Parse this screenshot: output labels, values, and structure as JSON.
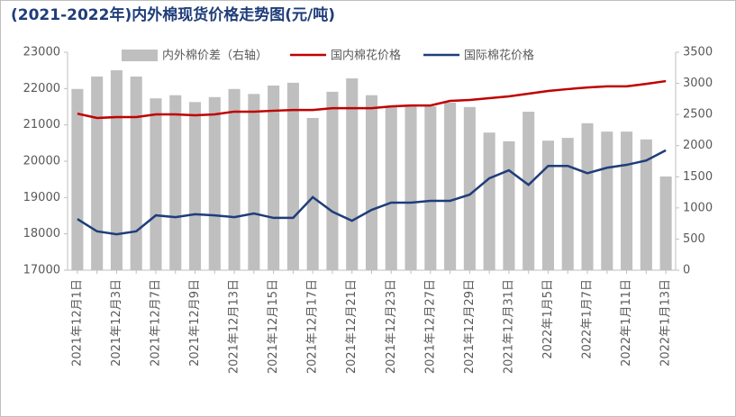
{
  "chart_data": {
    "type": "bar-line",
    "title": "(2021-2022年)内外棉现货价格走势图(元/吨)",
    "categories": [
      "2021年12月1日",
      null,
      "2021年12月3日",
      null,
      "2021年12月7日",
      null,
      "2021年12月9日",
      null,
      "2021年12月13日",
      null,
      "2021年12月15日",
      null,
      "2021年12月17日",
      null,
      "2021年12月21日",
      null,
      "2021年12月23日",
      null,
      "2021年12月27日",
      null,
      "2021年12月29日",
      null,
      "2021年12月31日",
      null,
      "2022年1月5日",
      null,
      "2022年1月7日",
      null,
      "2022年1月11日",
      null,
      "2022年1月13日"
    ],
    "series": [
      {
        "name": "内外棉价差（右轴）",
        "type": "bar",
        "axis": "y2",
        "color": "#bfbfbf",
        "values": [
          2910,
          3110,
          3210,
          3110,
          2760,
          2810,
          2700,
          2780,
          2910,
          2830,
          2965,
          3010,
          2445,
          2865,
          3080,
          2810,
          2630,
          2650,
          2630,
          2690,
          2620,
          2210,
          2070,
          2545,
          2080,
          2125,
          2360,
          2225,
          2225,
          2100,
          1505
        ]
      },
      {
        "name": "国内棉花价格",
        "type": "line",
        "color": "#c00000",
        "values": [
          21310,
          21190,
          21215,
          21215,
          21290,
          21290,
          21265,
          21290,
          21365,
          21365,
          21390,
          21410,
          21410,
          21460,
          21460,
          21460,
          21510,
          21535,
          21535,
          21660,
          21685,
          21735,
          21785,
          21860,
          21935,
          21985,
          22030,
          22060,
          22060,
          22130,
          22205
        ]
      },
      {
        "name": "国际棉花价格",
        "type": "line",
        "color": "#1f3d7a",
        "values": [
          18410,
          18070,
          17990,
          18070,
          18510,
          18460,
          18540,
          18510,
          18460,
          18560,
          18440,
          18440,
          19010,
          18610,
          18360,
          18660,
          18860,
          18860,
          18910,
          18910,
          19080,
          19530,
          19750,
          19350,
          19870,
          19870,
          19670,
          19820,
          19900,
          20020,
          20300
        ]
      }
    ],
    "ylim": [
      17000,
      23000
    ],
    "yticks": [
      17000,
      18000,
      19000,
      20000,
      21000,
      22000,
      23000
    ],
    "y2lim": [
      0,
      3500
    ],
    "y2ticks": [
      0,
      500,
      1000,
      1500,
      2000,
      2500,
      3000,
      3500
    ],
    "legend": "top"
  }
}
